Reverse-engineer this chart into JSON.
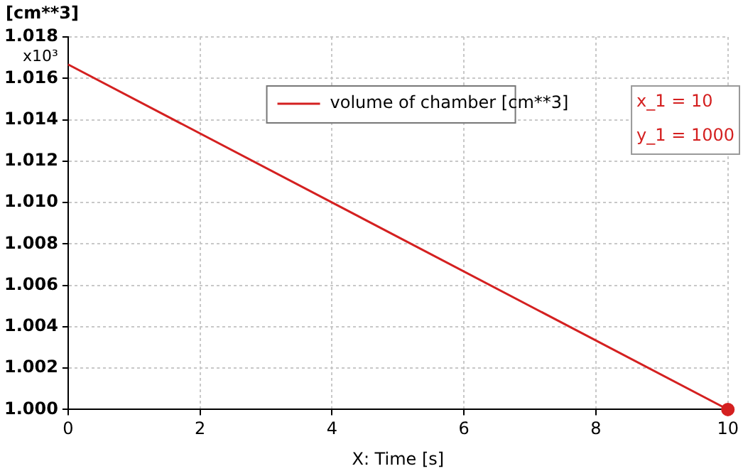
{
  "chart_data": {
    "type": "line",
    "xlabel": "X: Time [s]",
    "ylabel": "[cm**3]",
    "x": [
      0,
      10
    ],
    "annotations": [
      "x10³",
      "x_1 = 10",
      "y_1 = 1000"
    ],
    "series": [
      {
        "name": "volume of chamber [cm**3]",
        "color": "#d42020",
        "values": [
          1.01667,
          1.0
        ],
        "marker": "none"
      },
      {
        "type": "scatter",
        "color": "#d42020",
        "x": [
          10
        ],
        "values": [
          1.0
        ],
        "marker": "circle"
      }
    ],
    "xlim": [
      0,
      10
    ],
    "xticks": [
      0,
      2,
      4,
      6,
      8,
      10
    ],
    "ylim": [
      1.0,
      1.018
    ],
    "yticks": [
      {
        "value": 1.0,
        "label": "1.000"
      },
      {
        "value": 1.002,
        "label": "1.002"
      },
      {
        "value": 1.004,
        "label": "1.004"
      },
      {
        "value": 1.006,
        "label": "1.006"
      },
      {
        "value": 1.008,
        "label": "1.008"
      },
      {
        "value": 1.01,
        "label": "1.010"
      },
      {
        "value": 1.012,
        "label": "1.012"
      },
      {
        "value": 1.014,
        "label": "1.014"
      },
      {
        "value": 1.016,
        "label": "1.016"
      },
      {
        "value": 1.018,
        "label": "1.018"
      }
    ],
    "grid": true,
    "legend": "top right",
    "line_style": "solid"
  }
}
